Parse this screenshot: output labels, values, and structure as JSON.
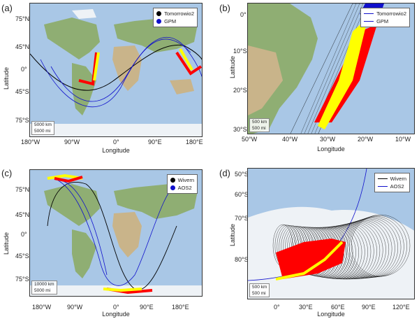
{
  "panels": {
    "a": {
      "letter": "(a)",
      "ylabel": "Latitude",
      "xlabel": "Longitude",
      "yticks": [
        "75°N",
        "45°N",
        "0°",
        "45°S",
        "75°S"
      ],
      "xticks": [
        "180°W",
        "90°W",
        "0°",
        "90°E",
        "180°E"
      ],
      "legend": [
        {
          "label": "Tomorrowio2",
          "color": "#000000"
        },
        {
          "label": "GPM",
          "color": "#1010cc"
        }
      ],
      "scale": [
        "5000 km",
        "5000 mi"
      ]
    },
    "b": {
      "letter": "(b)",
      "ylabel": "Latitude",
      "xlabel": "Longitude",
      "yticks": [
        "0°",
        "10°S",
        "20°S",
        "30°S"
      ],
      "xticks": [
        "50°W",
        "40°W",
        "30°W",
        "20°W",
        "10°W"
      ],
      "legend": [
        {
          "label": "Tomorrowio2",
          "color": "#1010cc"
        },
        {
          "label": "GPM",
          "color": "#1010cc"
        }
      ],
      "scale": [
        "500 km",
        "500 mi"
      ]
    },
    "c": {
      "letter": "(c)",
      "ylabel": "Latitude",
      "xlabel": "Longitude",
      "yticks": [
        "75°N",
        "45°N",
        "0°",
        "45°S",
        "75°S"
      ],
      "xticks": [
        "180°W",
        "90°W",
        "0°",
        "90°E",
        "180°E"
      ],
      "legend": [
        {
          "label": "Wivern",
          "color": "#000000"
        },
        {
          "label": "AOS2",
          "color": "#1010cc"
        }
      ],
      "scale": [
        "10000 km",
        "5000 mi"
      ]
    },
    "d": {
      "letter": "(d)",
      "ylabel": "Latitude",
      "xlabel": "Longitude",
      "yticks": [
        "50°S",
        "60°S",
        "70°S",
        "80°S"
      ],
      "xticks": [
        "0°",
        "30°E",
        "60°E",
        "90°E",
        "120°E"
      ],
      "legend": [
        {
          "label": "Wivern",
          "color": "#000000"
        },
        {
          "label": "AOS2",
          "color": "#1010cc"
        }
      ],
      "scale": [
        "500 km",
        "500 mi"
      ]
    }
  },
  "colors": {
    "ocean": "#a9c7e6",
    "land": "#8fae73",
    "desert": "#c9b48a",
    "ice": "#eef2f6",
    "red": "#ff0000",
    "yellow": "#ffff00",
    "black": "#000000",
    "blue": "#1010cc"
  }
}
